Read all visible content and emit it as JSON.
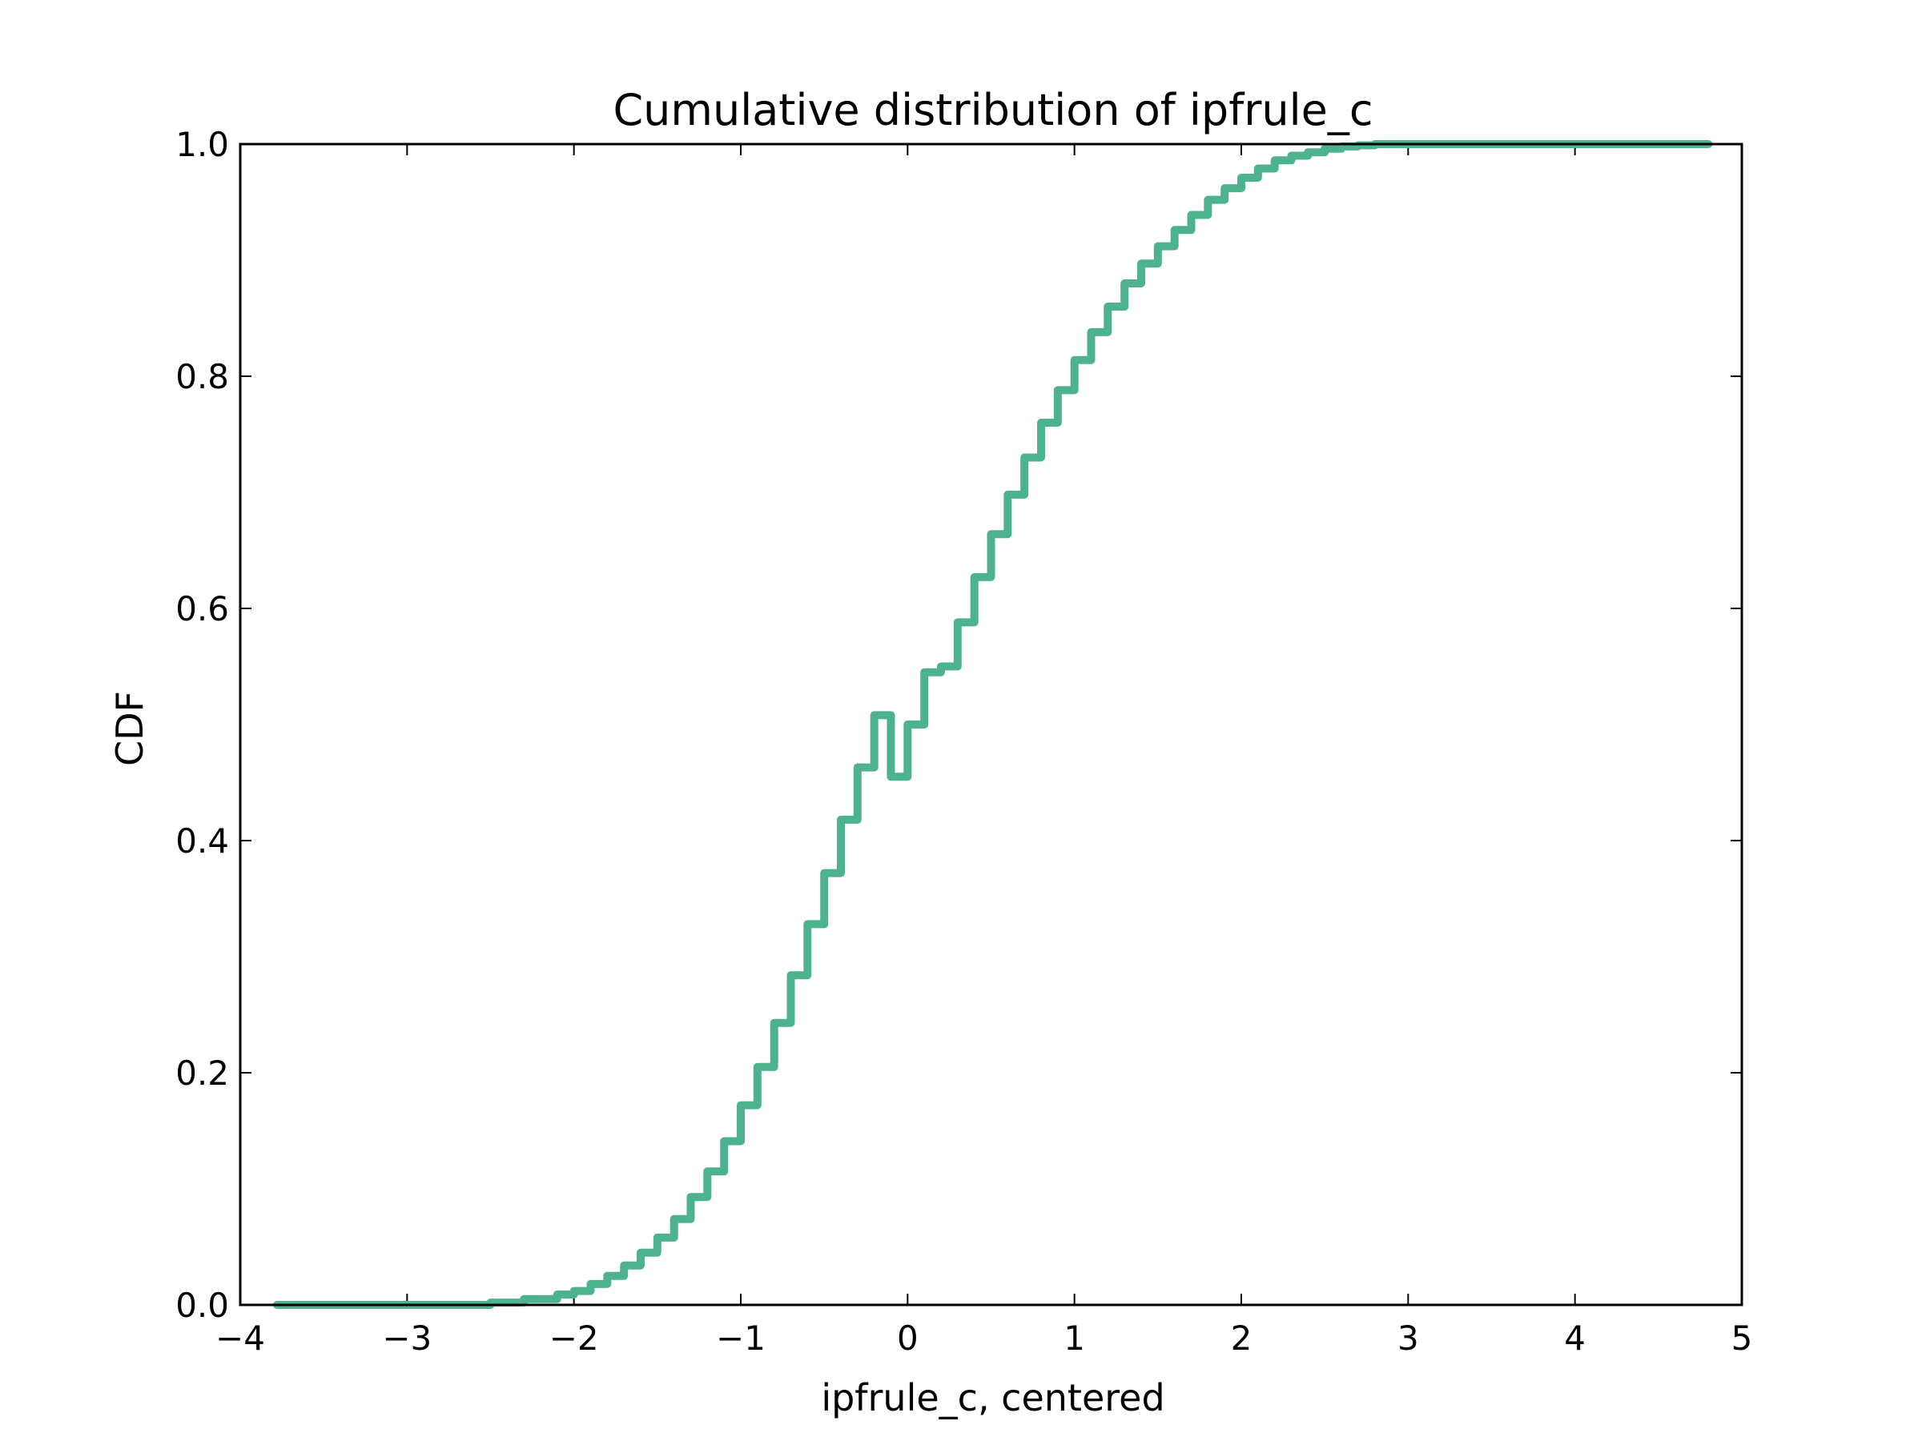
{
  "chart_data": {
    "type": "line",
    "title": "Cumulative distribution of ipfrule_c",
    "xlabel": "ipfrule_c, centered",
    "ylabel": "CDF",
    "xlim": [
      -4,
      5
    ],
    "ylim": [
      0.0,
      1.0
    ],
    "xticks": [
      -4,
      -3,
      -2,
      -1,
      0,
      1,
      2,
      3,
      4,
      5
    ],
    "xtick_labels": [
      "−4",
      "−3",
      "−2",
      "−1",
      "0",
      "1",
      "2",
      "3",
      "4",
      "5"
    ],
    "yticks": [
      0.0,
      0.2,
      0.4,
      0.6,
      0.8,
      1.0
    ],
    "ytick_labels": [
      "0.0",
      "0.2",
      "0.4",
      "0.6",
      "0.8",
      "1.0"
    ],
    "grid": false,
    "legend": "none",
    "series": [
      {
        "color": "#4db38e",
        "step": true,
        "x": [
          -3.78,
          -3.0,
          -2.5,
          -2.3,
          -2.1,
          -2.0,
          -1.9,
          -1.8,
          -1.7,
          -1.6,
          -1.5,
          -1.4,
          -1.3,
          -1.2,
          -1.1,
          -1.0,
          -0.9,
          -0.8,
          -0.7,
          -0.6,
          -0.5,
          -0.4,
          -0.3,
          -0.2,
          -0.1,
          0.0,
          0.1,
          0.2,
          0.3,
          0.4,
          0.5,
          0.6,
          0.7,
          0.8,
          0.9,
          1.0,
          1.1,
          1.2,
          1.3,
          1.4,
          1.5,
          1.6,
          1.7,
          1.8,
          1.9,
          2.0,
          2.1,
          2.2,
          2.3,
          2.4,
          2.5,
          2.6,
          2.7,
          2.8,
          2.9,
          3.0,
          3.1,
          3.2,
          3.3,
          3.5,
          3.7,
          4.0,
          4.4,
          4.8
        ],
        "y": [
          0.0,
          0.0,
          0.002,
          0.005,
          0.009,
          0.012,
          0.018,
          0.025,
          0.034,
          0.045,
          0.058,
          0.074,
          0.093,
          0.115,
          0.141,
          0.172,
          0.205,
          0.243,
          0.284,
          0.328,
          0.372,
          0.418,
          0.463,
          0.508,
          0.55,
          0.454,
          0.5,
          0.545,
          0.588,
          0.627,
          0.664,
          0.698,
          0.73,
          0.76,
          0.788,
          0.814,
          0.838,
          0.86,
          0.88,
          0.897,
          0.912,
          0.926,
          0.939,
          0.952,
          0.962,
          0.971,
          0.979,
          0.986,
          0.99,
          0.993,
          0.996,
          0.998,
          0.999,
          1.0,
          1.0,
          1.0,
          1.0,
          1.0,
          1.0,
          1.0,
          1.0,
          1.0,
          1.0,
          1.0
        ]
      }
    ]
  }
}
